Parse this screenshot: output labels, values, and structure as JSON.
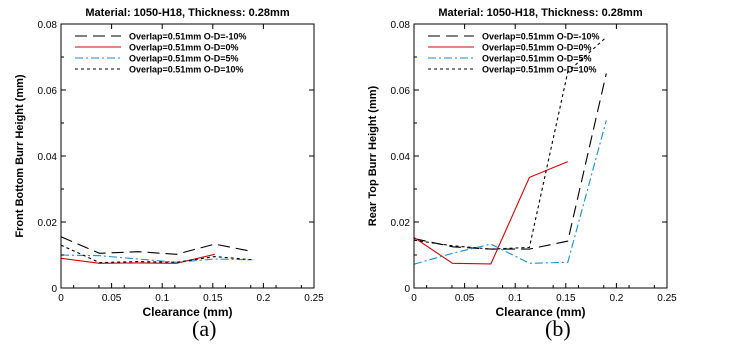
{
  "chart_data": [
    {
      "type": "line",
      "panel_label": "(a)",
      "title": "Material: 1050-H18, Thickness: 0.28mm",
      "xlabel": "Clearance (mm)",
      "ylabel": "Front Bottom Burr Height (mm)",
      "xlim": [
        0,
        0.25
      ],
      "ylim": [
        0,
        0.08
      ],
      "xticks": [
        0,
        0.05,
        0.1,
        0.15,
        0.2,
        0.25
      ],
      "xtick_labels": [
        "0",
        "0.05",
        "0.1",
        "0.15",
        "0.2",
        "0.25"
      ],
      "yticks": [
        0,
        0.02,
        0.04,
        0.06,
        0.08
      ],
      "ytick_labels": [
        "0",
        "0.02",
        "0.04",
        "0.06",
        "0.08"
      ],
      "legend_position": "top-left",
      "series": [
        {
          "name": "Overlap=0.51mm O-D=-10%",
          "color": "#000000",
          "dash": "long-dash",
          "x": [
            0,
            0.038,
            0.076,
            0.114,
            0.152,
            0.19
          ],
          "y": [
            0.0155,
            0.0105,
            0.011,
            0.0102,
            0.0133,
            0.011
          ]
        },
        {
          "name": "Overlap=0.51mm O-D=0%",
          "color": "#dd0000",
          "dash": "solid",
          "x": [
            0,
            0.038,
            0.076,
            0.114,
            0.152
          ],
          "y": [
            0.009,
            0.0075,
            0.0076,
            0.0075,
            0.0102
          ]
        },
        {
          "name": "Overlap=0.51mm O-D=5%",
          "color": "#1a8fd6",
          "dash": "dash-dot",
          "x": [
            0,
            0.038,
            0.076,
            0.114,
            0.152,
            0.19
          ],
          "y": [
            0.01,
            0.0098,
            0.0088,
            0.0078,
            0.0088,
            0.0085
          ]
        },
        {
          "name": "Overlap=0.51mm O-D=10%",
          "color": "#000000",
          "dash": "dotted",
          "x": [
            0,
            0.038,
            0.076,
            0.114,
            0.152,
            0.19
          ],
          "y": [
            0.013,
            0.0077,
            0.008,
            0.0078,
            0.0095,
            0.0085
          ]
        }
      ]
    },
    {
      "type": "line",
      "panel_label": "(b)",
      "title": "Material: 1050-H18, Thickness: 0.28mm",
      "xlabel": "Clearance (mm)",
      "ylabel": "Rear Top Burr Height (mm)",
      "xlim": [
        0,
        0.25
      ],
      "ylim": [
        0,
        0.08
      ],
      "xticks": [
        0,
        0.05,
        0.1,
        0.15,
        0.2,
        0.25
      ],
      "xtick_labels": [
        "0",
        "0.05",
        "0.1",
        "0.15",
        "0.2",
        "0.25"
      ],
      "yticks": [
        0,
        0.02,
        0.04,
        0.06,
        0.08
      ],
      "ytick_labels": [
        "0",
        "0.02",
        "0.04",
        "0.06",
        "0.08"
      ],
      "legend_position": "top-left",
      "series": [
        {
          "name": "Overlap=0.51mm O-D=-10%",
          "color": "#000000",
          "dash": "long-dash",
          "x": [
            0,
            0.038,
            0.076,
            0.114,
            0.152,
            0.19
          ],
          "y": [
            0.015,
            0.0125,
            0.0118,
            0.0118,
            0.0142,
            0.065
          ]
        },
        {
          "name": "Overlap=0.51mm O-D=0%",
          "color": "#dd0000",
          "dash": "solid",
          "x": [
            0,
            0.038,
            0.076,
            0.114,
            0.152
          ],
          "y": [
            0.0153,
            0.0075,
            0.0073,
            0.0335,
            0.0383
          ]
        },
        {
          "name": "Overlap=0.51mm O-D=5%",
          "color": "#1a8fd6",
          "dash": "dash-dot",
          "x": [
            0,
            0.038,
            0.076,
            0.114,
            0.152,
            0.19
          ],
          "y": [
            0.0072,
            0.0105,
            0.0133,
            0.0075,
            0.0078,
            0.0508
          ]
        },
        {
          "name": "Overlap=0.51mm O-D=10%",
          "color": "#000000",
          "dash": "dotted",
          "x": [
            0,
            0.038,
            0.076,
            0.114,
            0.152,
            0.19
          ],
          "y": [
            0.0145,
            0.0128,
            0.0118,
            0.0123,
            0.0655,
            0.076
          ]
        }
      ]
    }
  ]
}
